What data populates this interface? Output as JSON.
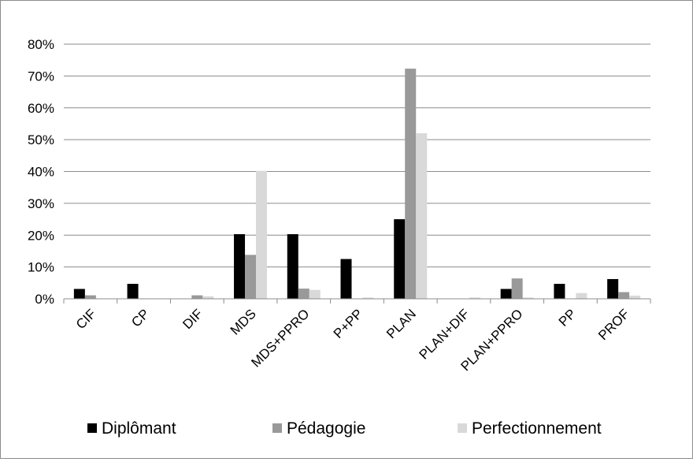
{
  "chart_data": {
    "type": "bar",
    "title": "",
    "xlabel": "",
    "ylabel": "",
    "ylim": [
      0,
      0.8
    ],
    "yticks": [
      0,
      0.1,
      0.2,
      0.3,
      0.4,
      0.5,
      0.6,
      0.7,
      0.8
    ],
    "ytick_labels": [
      "0%",
      "10%",
      "20%",
      "30%",
      "40%",
      "50%",
      "60%",
      "70%",
      "80%"
    ],
    "grid": true,
    "legend_position": "bottom",
    "categories": [
      "CIF",
      "CP",
      "DIF",
      "MDS",
      "MDS+PPRO",
      "P+PP",
      "PLAN",
      "PLAN+DIF",
      "PLAN+PPRO",
      "PP",
      "PROF"
    ],
    "series": [
      {
        "name": "Diplômant",
        "color": "#000000",
        "values": [
          0.031,
          0.047,
          0.0,
          0.203,
          0.203,
          0.125,
          0.25,
          0.0,
          0.031,
          0.047,
          0.062
        ]
      },
      {
        "name": "Pédagogie",
        "color": "#999999",
        "values": [
          0.011,
          0.0,
          0.011,
          0.138,
          0.032,
          0.0,
          0.723,
          0.0,
          0.064,
          0.0,
          0.021
        ]
      },
      {
        "name": "Perfectionnement",
        "color": "#d9d9d9",
        "values": [
          0.0,
          0.0,
          0.008,
          0.402,
          0.028,
          0.004,
          0.52,
          0.004,
          0.004,
          0.018,
          0.01
        ]
      }
    ]
  }
}
